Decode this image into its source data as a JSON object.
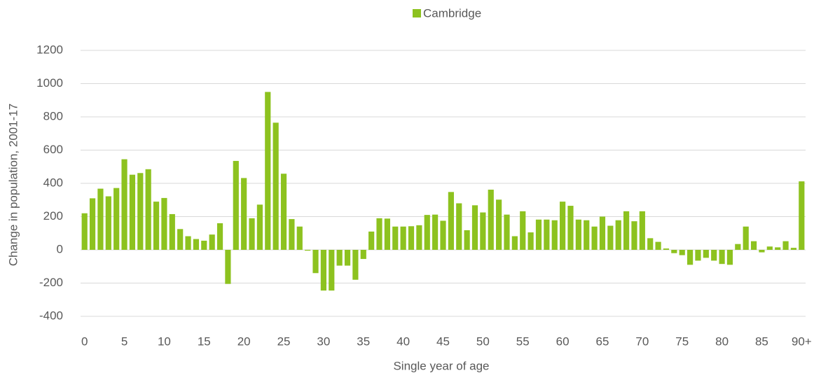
{
  "chart_data": {
    "type": "bar",
    "series": [
      {
        "name": "Cambridge",
        "color": "#8DC21F",
        "values": [
          220,
          310,
          368,
          322,
          372,
          545,
          452,
          462,
          485,
          290,
          312,
          215,
          125,
          82,
          65,
          55,
          92,
          160,
          -205,
          535,
          432,
          190,
          272,
          950,
          765,
          458,
          185,
          140,
          -5,
          -140,
          -245,
          -245,
          -95,
          -95,
          -180,
          -55,
          110,
          190,
          188,
          140,
          140,
          142,
          148,
          210,
          212,
          175,
          348,
          280,
          118,
          268,
          225,
          362,
          302,
          212,
          82,
          232,
          105,
          182,
          182,
          178,
          290,
          265,
          182,
          178,
          140,
          200,
          145,
          178,
          232,
          172,
          232,
          70,
          48,
          8,
          -20,
          -32,
          -90,
          -65,
          -48,
          -65,
          -85,
          -90,
          35,
          140,
          52,
          -15,
          20,
          15,
          52,
          12,
          412
        ]
      }
    ],
    "categories": [
      "0",
      null,
      null,
      null,
      null,
      "5",
      null,
      null,
      null,
      null,
      "10",
      null,
      null,
      null,
      null,
      "15",
      null,
      null,
      null,
      null,
      "20",
      null,
      null,
      null,
      null,
      "25",
      null,
      null,
      null,
      null,
      "30",
      null,
      null,
      null,
      null,
      "35",
      null,
      null,
      null,
      null,
      "40",
      null,
      null,
      null,
      null,
      "45",
      null,
      null,
      null,
      null,
      "50",
      null,
      null,
      null,
      null,
      "55",
      null,
      null,
      null,
      null,
      "60",
      null,
      null,
      null,
      null,
      "65",
      null,
      null,
      null,
      null,
      "70",
      null,
      null,
      null,
      null,
      "75",
      null,
      null,
      null,
      null,
      "80",
      null,
      null,
      null,
      null,
      "85",
      null,
      null,
      null,
      null,
      "90+"
    ],
    "x_label": "Single year of age",
    "y_label": "Change in population, 2001-17",
    "ylim": [
      -400,
      1200
    ],
    "yticks": [
      -400,
      -200,
      0,
      200,
      400,
      600,
      800,
      1000,
      1200
    ],
    "grid": true,
    "legend": "top"
  }
}
